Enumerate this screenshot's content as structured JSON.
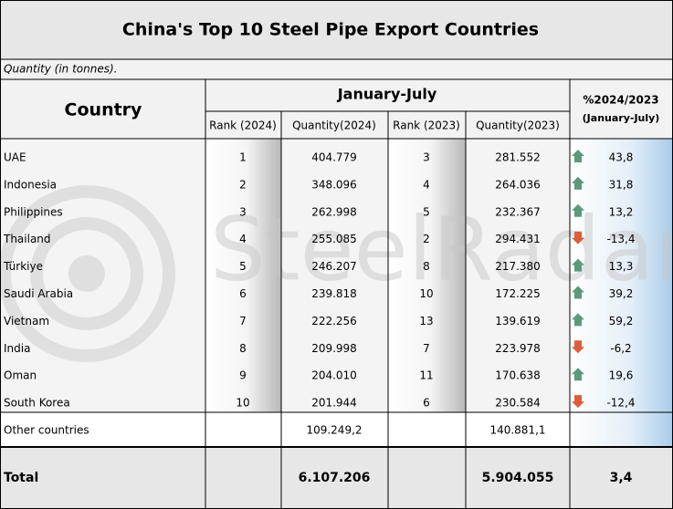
{
  "header": {
    "title": "China's Top 10 Steel Pipe Export Countries",
    "note": "Quantity (in tonnes)."
  },
  "table": {
    "group": "January-July",
    "columns": [
      "Country",
      "Rank (2024)",
      "Quantity(2024)",
      "Rank (2023)",
      "Quantity(2023)"
    ],
    "change_header": [
      "%2024/2023",
      "(January-July)"
    ],
    "rows": [
      [
        "UAE",
        "1",
        "404.779",
        "3",
        "281.552",
        "43,8"
      ],
      [
        "Indonesia",
        "2",
        "348.096",
        "4",
        "264.036",
        "31,8"
      ],
      [
        "Philippines",
        "3",
        "262.998",
        "5",
        "232.367",
        "13,2"
      ],
      [
        "Thailand",
        "4",
        "255.085",
        "2",
        "294.431",
        "-13,4"
      ],
      [
        "Türkiye",
        "5",
        "246.207",
        "8",
        "217.380",
        "13,3"
      ],
      [
        "Saudi Arabia",
        "6",
        "239.818",
        "10",
        "172.225",
        "39,2"
      ],
      [
        "Vietnam",
        "7",
        "222.256",
        "13",
        "139.619",
        "59,2"
      ],
      [
        "India",
        "8",
        "209.998",
        "7",
        "223.978",
        "-6,2"
      ],
      [
        "Oman",
        "9",
        "204.010",
        "11",
        "170.638",
        "19,6"
      ],
      [
        "South Korea",
        "10",
        "201.944",
        "6",
        "230.584",
        "-12,4"
      ]
    ],
    "other": [
      "Other countries",
      "109.249,2",
      "140.881,1"
    ],
    "total": [
      "Total",
      "6.107.206",
      "5.904.055",
      "3,4"
    ]
  },
  "watermark": "SteelRadar"
}
